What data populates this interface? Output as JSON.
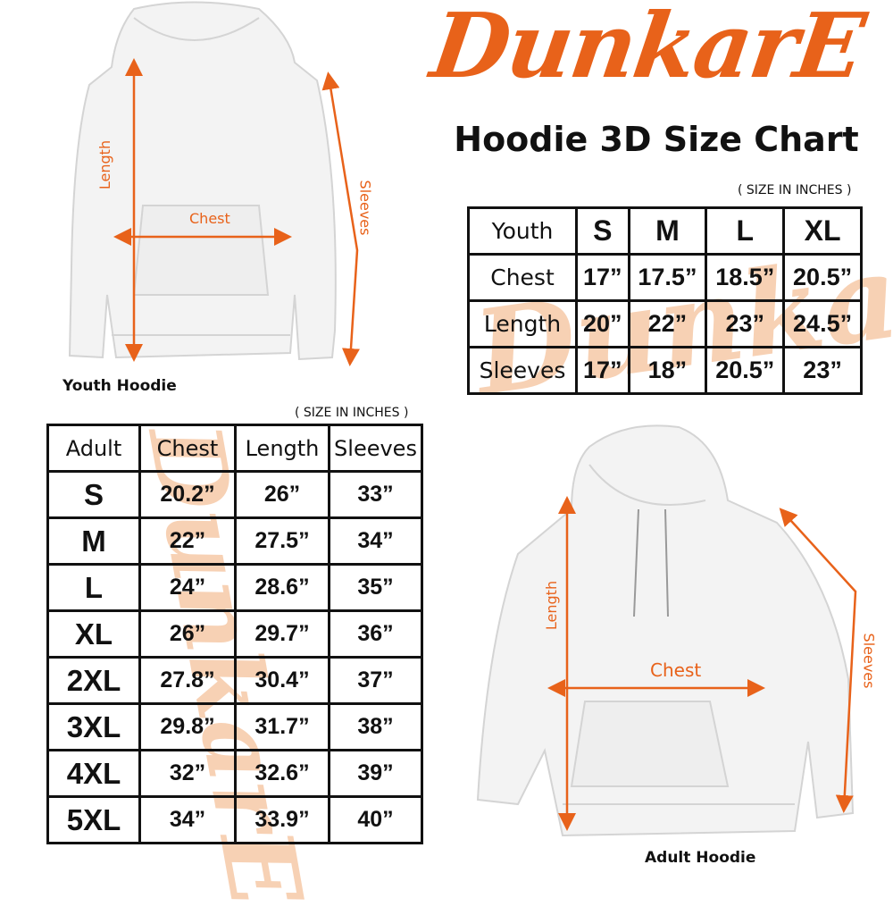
{
  "brand": {
    "logo_text": "DunkarE",
    "accent_color": "#e8621a"
  },
  "title": "Hoodie 3D Size Chart",
  "youth": {
    "caption": "Youth Hoodie",
    "labels": {
      "length": "Length",
      "chest": "Chest",
      "sleeves": "Sleeves"
    },
    "unit_note": "( SIZE IN INCHES )",
    "table": {
      "header": [
        "Youth",
        "S",
        "M",
        "L",
        "XL"
      ],
      "rows": [
        [
          "Chest",
          "17”",
          "17.5”",
          "18.5”",
          "20.5”"
        ],
        [
          "Length",
          "20”",
          "22”",
          "23”",
          "24.5”"
        ],
        [
          "Sleeves",
          "17”",
          "18”",
          "20.5”",
          "23”"
        ]
      ]
    }
  },
  "adult": {
    "caption": "Adult Hoodie",
    "labels": {
      "length": "Length",
      "chest": "Chest",
      "sleeves": "Sleeves"
    },
    "unit_note": "( SIZE IN INCHES )",
    "table": {
      "header": [
        "Adult",
        "Chest",
        "Length",
        "Sleeves"
      ],
      "rows": [
        [
          "S",
          "20.2”",
          "26”",
          "33”"
        ],
        [
          "M",
          "22”",
          "27.5”",
          "34”"
        ],
        [
          "L",
          "24”",
          "28.6”",
          "35”"
        ],
        [
          "XL",
          "26”",
          "29.7”",
          "36”"
        ],
        [
          "2XL",
          "27.8”",
          "30.4”",
          "37”"
        ],
        [
          "3XL",
          "29.8”",
          "31.7”",
          "38”"
        ],
        [
          "4XL",
          "32”",
          "32.6”",
          "39”"
        ],
        [
          "5XL",
          "34”",
          "33.9”",
          "40”"
        ]
      ]
    }
  }
}
